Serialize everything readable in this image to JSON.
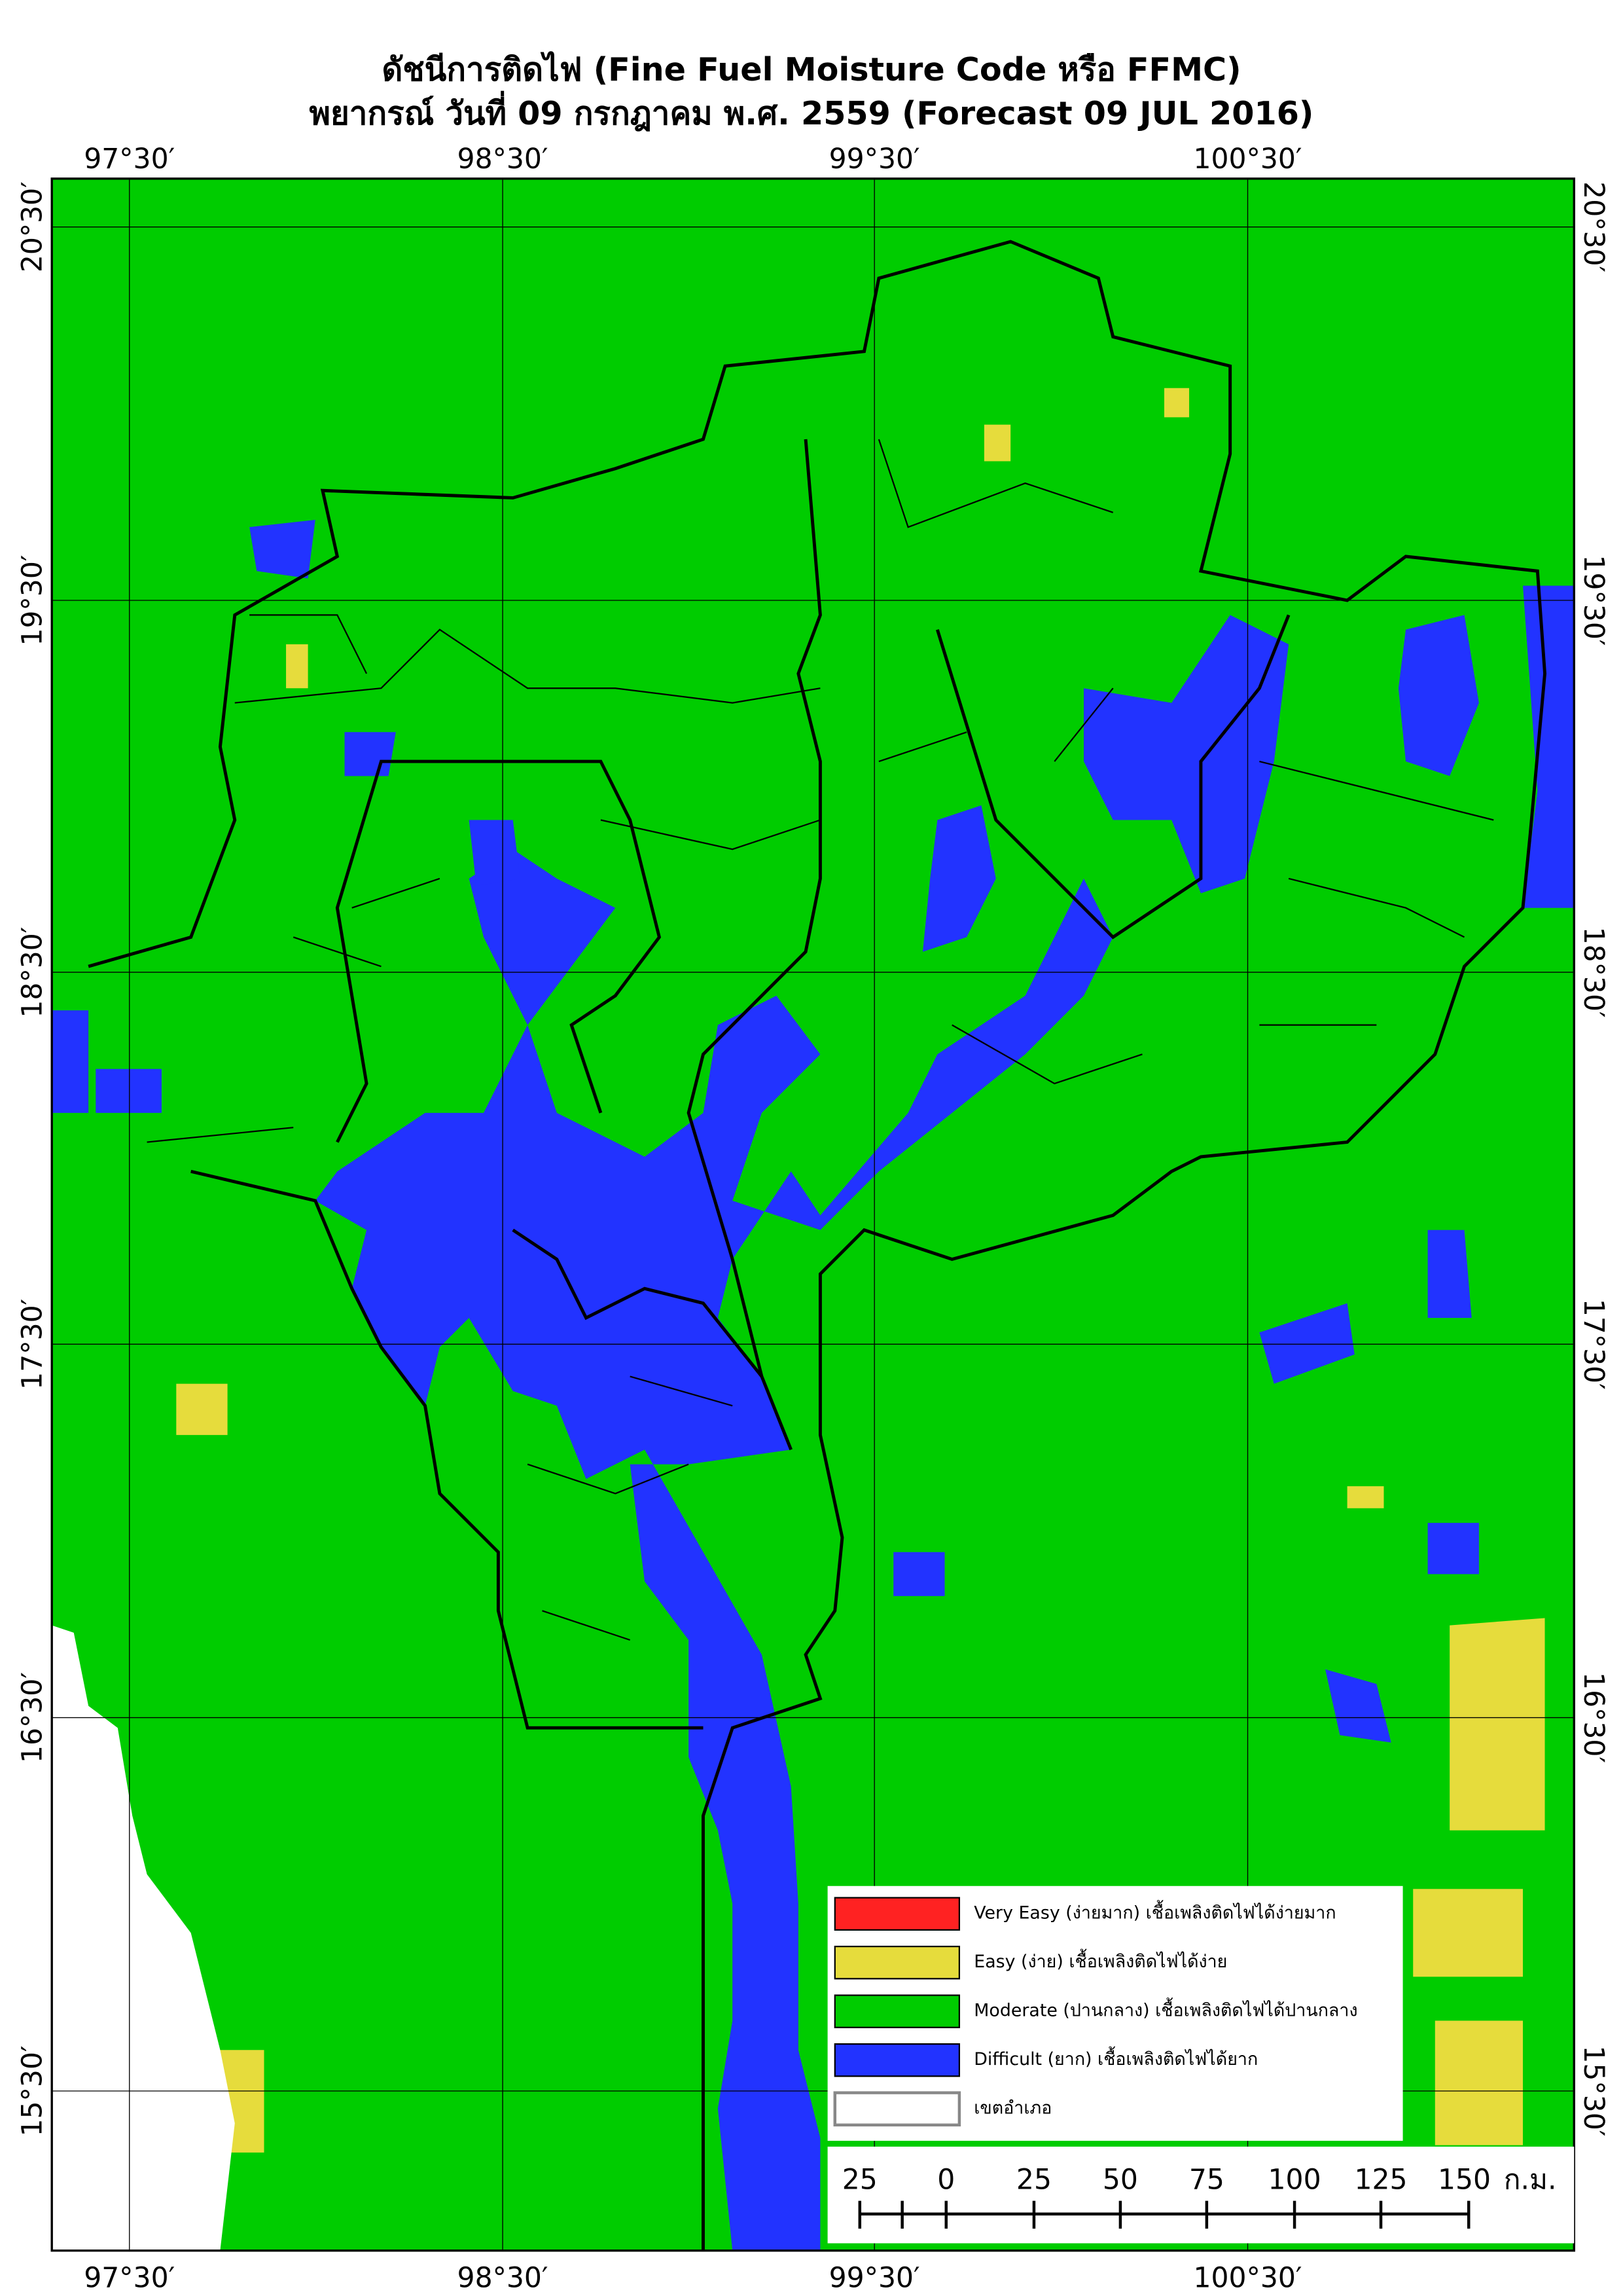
{
  "title": "ดัชนีการติดไฟ (Fine Fuel Moisture Code หรือ FFMC)",
  "subtitle": "พยากรณ์ วันที่ 09 กรกฎาคม พ.ศ. 2559 (Forecast 09 JUL 2016)",
  "map": {
    "longitude_labels": [
      "97°30′",
      "98°30′",
      "99°30′",
      "100°30′"
    ],
    "latitude_labels": [
      "20°30′",
      "19°30′",
      "18°30′",
      "17°30′",
      "16°30′",
      "15°30′"
    ]
  },
  "legend": {
    "items": [
      "Very Easy (ง่ายมาก) เชื้อเพลิงติดไฟได้ง่ายมาก",
      "Easy (ง่าย) เชื้อเพลิงติดไฟได้ง่าย",
      "Moderate (ปานกลาง) เชื้อเพลิงติดไฟได้ปานกลาง",
      "Difficult (ยาก) เชื้อเพลิงติดไฟได้ยาก",
      "เขตอำเภอ"
    ]
  },
  "scale_bar": {
    "labels": [
      25,
      0,
      25,
      50,
      75,
      100,
      125,
      150
    ],
    "unit": "ก.ม."
  }
}
